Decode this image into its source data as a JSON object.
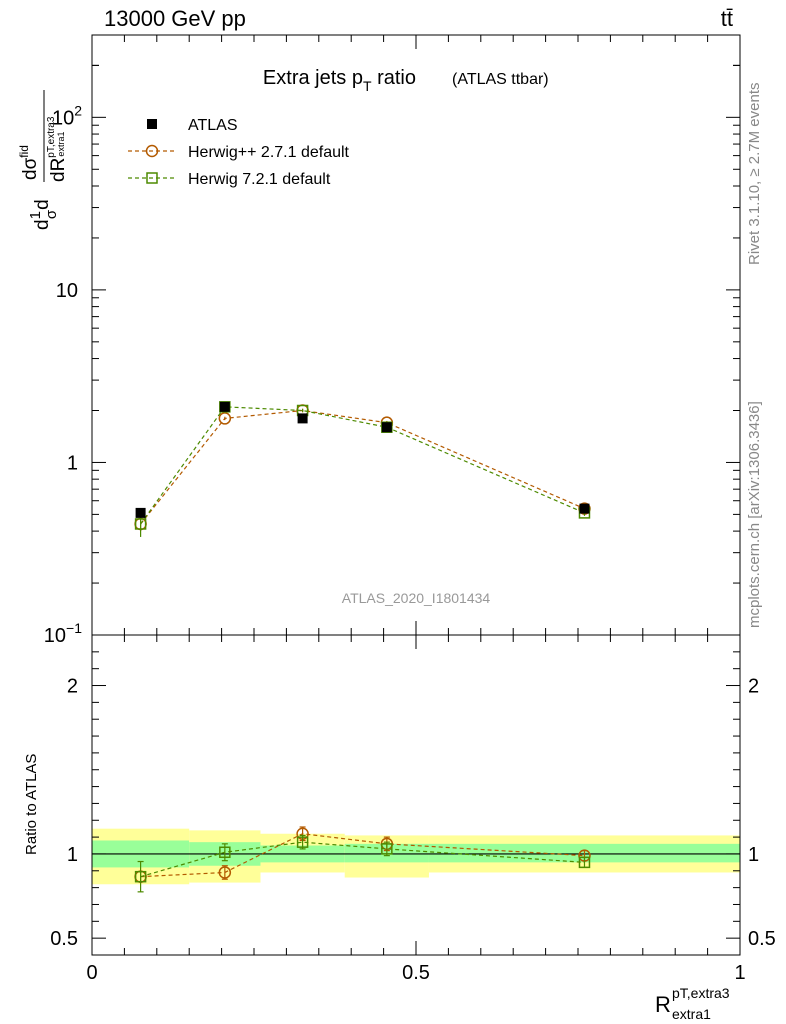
{
  "header": {
    "energy_label": "13000 GeV pp",
    "process_label": "tt̄"
  },
  "side_labels": {
    "rivet": "Rivet 3.1.10, ≥ 2.7M events",
    "mcplots": "mcplots.cern.ch [arXiv:1306.3436]"
  },
  "chart_data": {
    "type": "line",
    "title": "Extra jets p",
    "title_sub": "T",
    "title_suffix": " ratio",
    "title_note": "(ATLAS ttbar)",
    "watermark": "ATLAS_2020_I1801434",
    "ylabel_top": "dσfid / dR(pT,extra3 / extra1), (1/σ)",
    "ylabel_bottom": "Ratio to ATLAS",
    "xlabel_main": "R",
    "xlabel_sup": "pT,extra3",
    "xlabel_sub": "extra1",
    "xlim": [
      0,
      1
    ],
    "ylim_top": [
      0.1,
      300
    ],
    "yscale_top": "log",
    "ylim_bottom": [
      0.4,
      2.3
    ],
    "x_ticks": [
      {
        "value": 0,
        "label": "0"
      },
      {
        "value": 0.5,
        "label": "0.5"
      },
      {
        "value": 1,
        "label": "1"
      }
    ],
    "y_ticks_top": [
      {
        "value": 0.1,
        "base": "10",
        "exp": "−1"
      },
      {
        "value": 1,
        "base": "1",
        "exp": ""
      },
      {
        "value": 10,
        "base": "10",
        "exp": ""
      },
      {
        "value": 100,
        "base": "10",
        "exp": "2"
      }
    ],
    "y_ticks_bottom": [
      {
        "value": 0.5,
        "label": "0.5"
      },
      {
        "value": 1,
        "label": "1"
      },
      {
        "value": 2,
        "label": "2"
      }
    ],
    "legend": [
      {
        "name": "ATLAS",
        "marker": "filled-square",
        "color": "#000000"
      },
      {
        "name": "Herwig++ 2.7.1 default",
        "marker": "open-circle",
        "color": "#b35a00"
      },
      {
        "name": "Herwig 7.2.1 default",
        "marker": "open-square",
        "color": "#4d8a00"
      }
    ],
    "bins": [
      {
        "lo": 0.0,
        "hi": 0.15,
        "x": 0.075
      },
      {
        "lo": 0.15,
        "hi": 0.26,
        "x": 0.205
      },
      {
        "lo": 0.26,
        "hi": 0.39,
        "x": 0.325
      },
      {
        "lo": 0.39,
        "hi": 0.52,
        "x": 0.455
      },
      {
        "lo": 0.52,
        "hi": 1.0,
        "x": 0.76
      }
    ],
    "data": {
      "name": "ATLAS",
      "values": [
        0.51,
        2.1,
        1.8,
        1.6,
        0.54
      ]
    },
    "series": [
      {
        "name": "Herwig++ 2.7.1 default",
        "color": "#b35a00",
        "values": [
          0.44,
          1.8,
          2.0,
          1.7,
          0.54
        ],
        "errors": [
          0.04,
          0.04,
          0.05,
          0.04,
          0.02
        ],
        "ratio": [
          0.865,
          0.89,
          1.12,
          1.06,
          0.99
        ],
        "ratio_err": [
          0.03,
          0.04,
          0.04,
          0.04,
          0.03
        ]
      },
      {
        "name": "Herwig 7.2.1 default",
        "color": "#4d8a00",
        "values": [
          0.44,
          2.1,
          2.0,
          1.6,
          0.51
        ],
        "errors": [
          0.07,
          0.05,
          0.04,
          0.04,
          0.02
        ],
        "ratio": [
          0.865,
          1.01,
          1.07,
          1.03,
          0.95
        ],
        "ratio_err": [
          0.09,
          0.05,
          0.04,
          0.04,
          0.03
        ]
      }
    ],
    "bands": {
      "inner_color": "#99ff99",
      "outer_color": "#ffff99",
      "inner": [
        [
          0.92,
          1.08
        ],
        [
          0.93,
          1.07
        ],
        [
          0.95,
          1.05
        ],
        [
          0.95,
          1.06
        ],
        [
          0.95,
          1.06
        ]
      ],
      "outer": [
        [
          0.82,
          1.15
        ],
        [
          0.83,
          1.14
        ],
        [
          0.89,
          1.12
        ],
        [
          0.86,
          1.11
        ],
        [
          0.89,
          1.11
        ]
      ]
    }
  }
}
